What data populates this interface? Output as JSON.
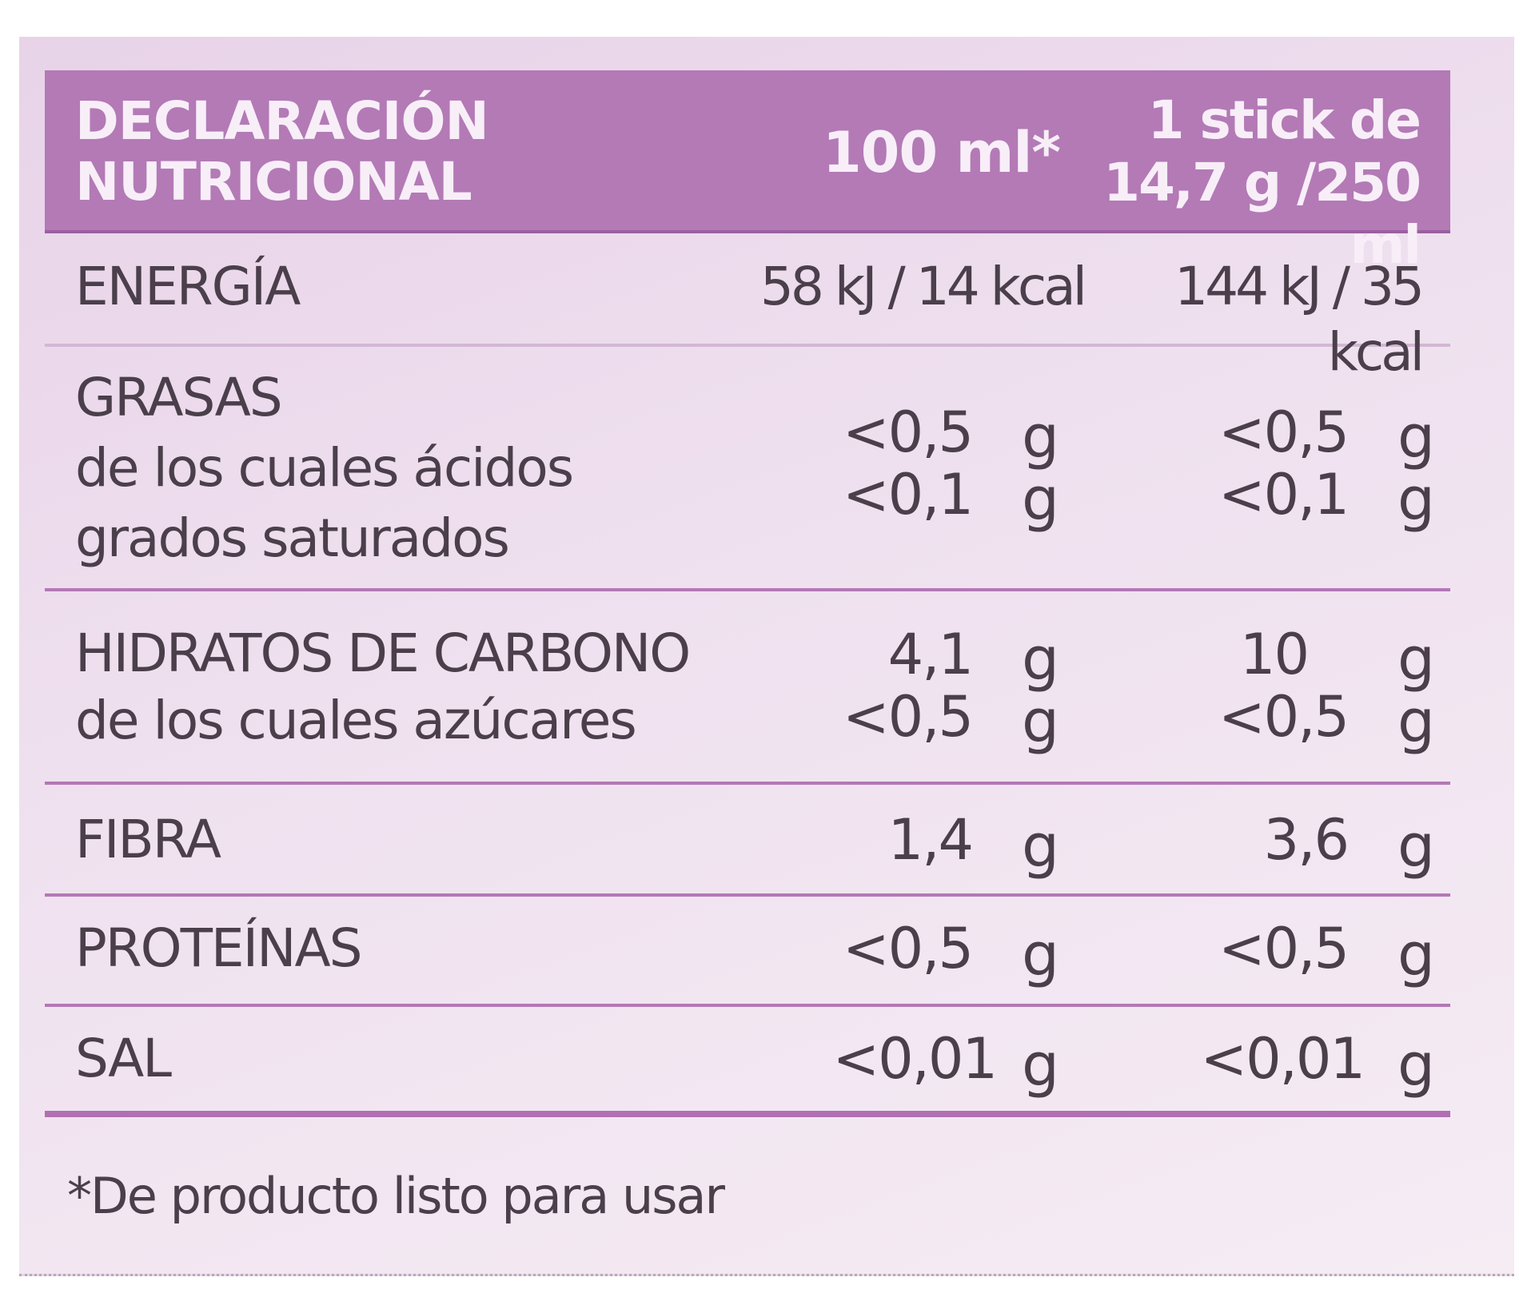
{
  "header": {
    "title_line1": "DECLARACIÓN",
    "title_line2": "NUTRICIONAL",
    "col1": "100 ml*",
    "col2_line1": "1 stick de",
    "col2_line2": "14,7 g /250 ml"
  },
  "rows": {
    "energy": {
      "label": "ENERGÍA",
      "col1": "58 kJ / 14 kcal",
      "col2": "144 kJ / 35 kcal"
    },
    "fats": {
      "label_line1": "GRASAS",
      "label_line2": "de los cuales ácidos",
      "label_line3": "grados saturados",
      "col1_a": "<0,5",
      "col1_b": "<0,1",
      "col2_a": "<0,5",
      "col2_b": "<0,1",
      "unit": "g"
    },
    "carbs": {
      "label_line1": "HIDRATOS DE CARBONO",
      "label_line2": "de los cuales azúcares",
      "col1_a": "4,1",
      "col1_b": "<0,5",
      "col2_a": "10",
      "col2_b": "<0,5",
      "unit": "g"
    },
    "fiber": {
      "label": "FIBRA",
      "col1": "1,4",
      "col2": "3,6",
      "unit": "g"
    },
    "protein": {
      "label": "PROTEÍNAS",
      "col1": "<0,5",
      "col2": "<0,5",
      "unit": "g"
    },
    "salt": {
      "label": "SAL",
      "col1": "<0,01",
      "col2": "<0,01",
      "unit": "g"
    }
  },
  "footnote": "*De producto listo para usar",
  "colors": {
    "header_bg": "#b37ab6",
    "header_text": "#f8eef8",
    "separator": "#b378b6",
    "text": "#4a3f4a"
  }
}
